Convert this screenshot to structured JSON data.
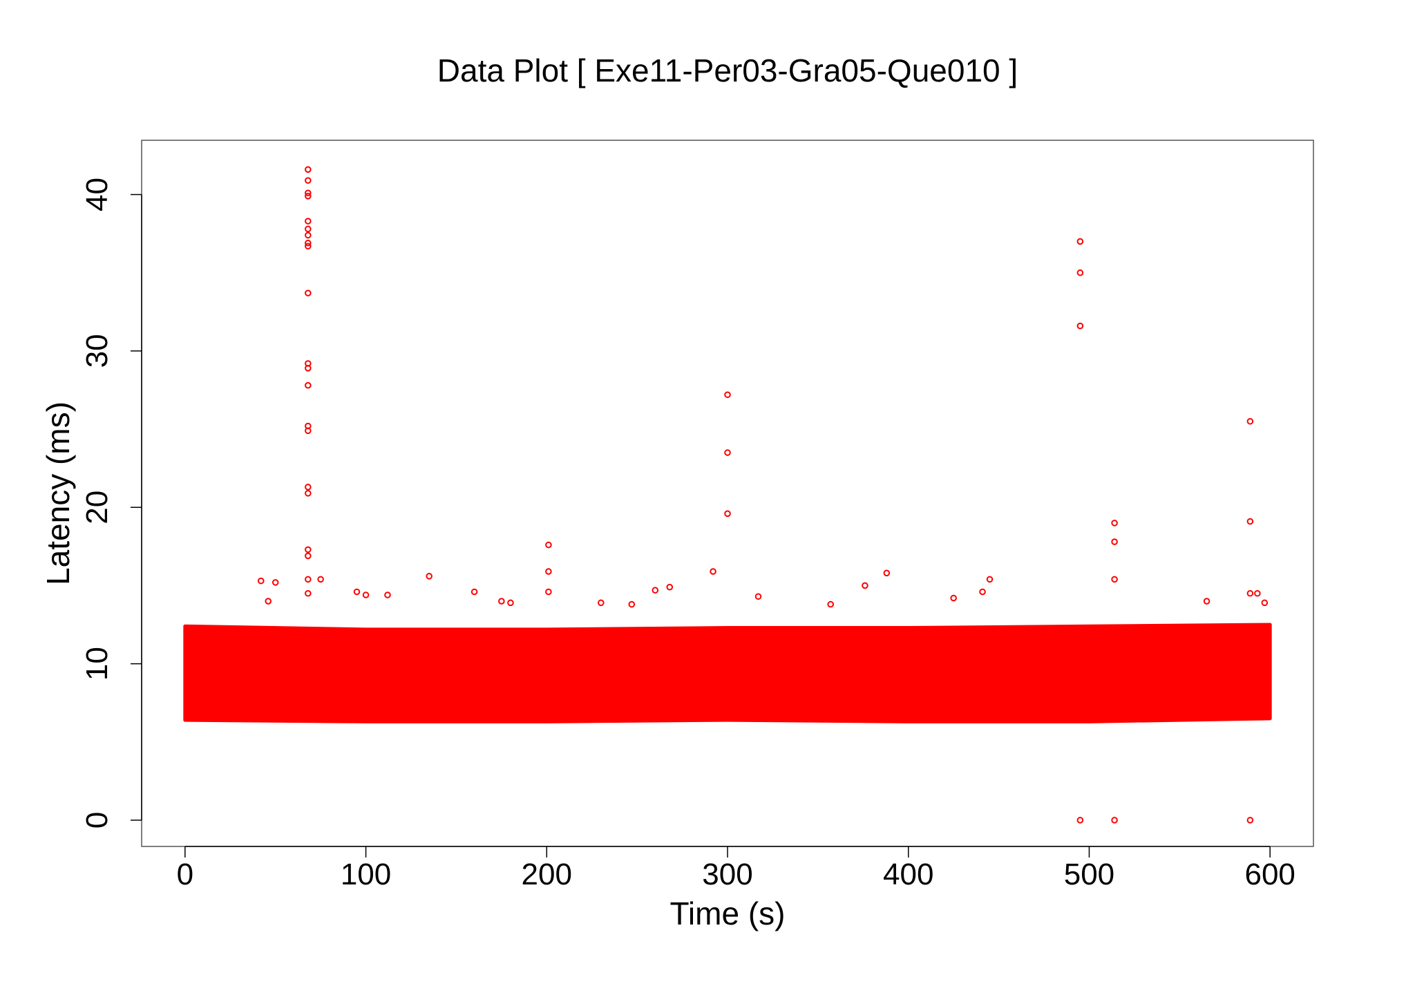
{
  "chart_data": {
    "type": "scatter",
    "title": "Data Plot [ Exe11-Per03-Gra05-Que010 ]",
    "x_label": "Time (s)",
    "y_label": "Latency (ms)",
    "color": "#ff0000",
    "xlim": [
      -24,
      624
    ],
    "ylim": [
      -1.68,
      43.47
    ],
    "xticks": [
      0,
      100,
      200,
      300,
      400,
      500,
      600
    ],
    "yticks": [
      0,
      10,
      20,
      30,
      40
    ],
    "band": {
      "x": [
        0,
        100,
        200,
        300,
        400,
        500,
        600
      ],
      "low": [
        6.4,
        6.3,
        6.3,
        6.4,
        6.3,
        6.3,
        6.5
      ],
      "high": [
        12.4,
        12.2,
        12.2,
        12.3,
        12.3,
        12.4,
        12.5
      ]
    },
    "x": [
      68,
      68,
      68,
      68,
      68,
      68,
      68,
      68,
      68,
      68,
      68,
      68,
      68,
      68,
      68,
      68,
      68,
      68,
      68,
      68,
      68,
      300,
      300,
      300,
      292,
      495,
      495,
      495,
      495,
      514,
      514,
      514,
      514,
      589,
      589,
      589,
      589,
      201,
      201,
      201,
      42,
      50,
      46,
      135,
      160,
      95,
      100,
      112,
      75,
      260,
      268,
      388,
      376,
      445,
      441,
      425,
      357,
      230,
      247,
      317,
      565,
      593,
      597,
      175,
      180
    ],
    "y": [
      41.6,
      40.9,
      40.1,
      39.9,
      38.3,
      37.8,
      37.4,
      36.9,
      36.7,
      33.7,
      29.2,
      28.9,
      27.8,
      25.2,
      24.9,
      21.3,
      20.9,
      17.3,
      16.9,
      15.4,
      14.5,
      27.2,
      23.5,
      19.6,
      15.9,
      37.0,
      35.0,
      31.6,
      0,
      19.0,
      17.8,
      15.4,
      0,
      25.5,
      19.1,
      0,
      14.5,
      17.6,
      15.9,
      14.6,
      15.3,
      15.2,
      14.0,
      15.6,
      14.6,
      14.6,
      14.4,
      14.4,
      15.4,
      14.7,
      14.9,
      15.8,
      15.0,
      15.4,
      14.6,
      14.2,
      13.8,
      13.9,
      13.8,
      14.3,
      14.0,
      14.5,
      13.9,
      14.0,
      13.9
    ]
  }
}
